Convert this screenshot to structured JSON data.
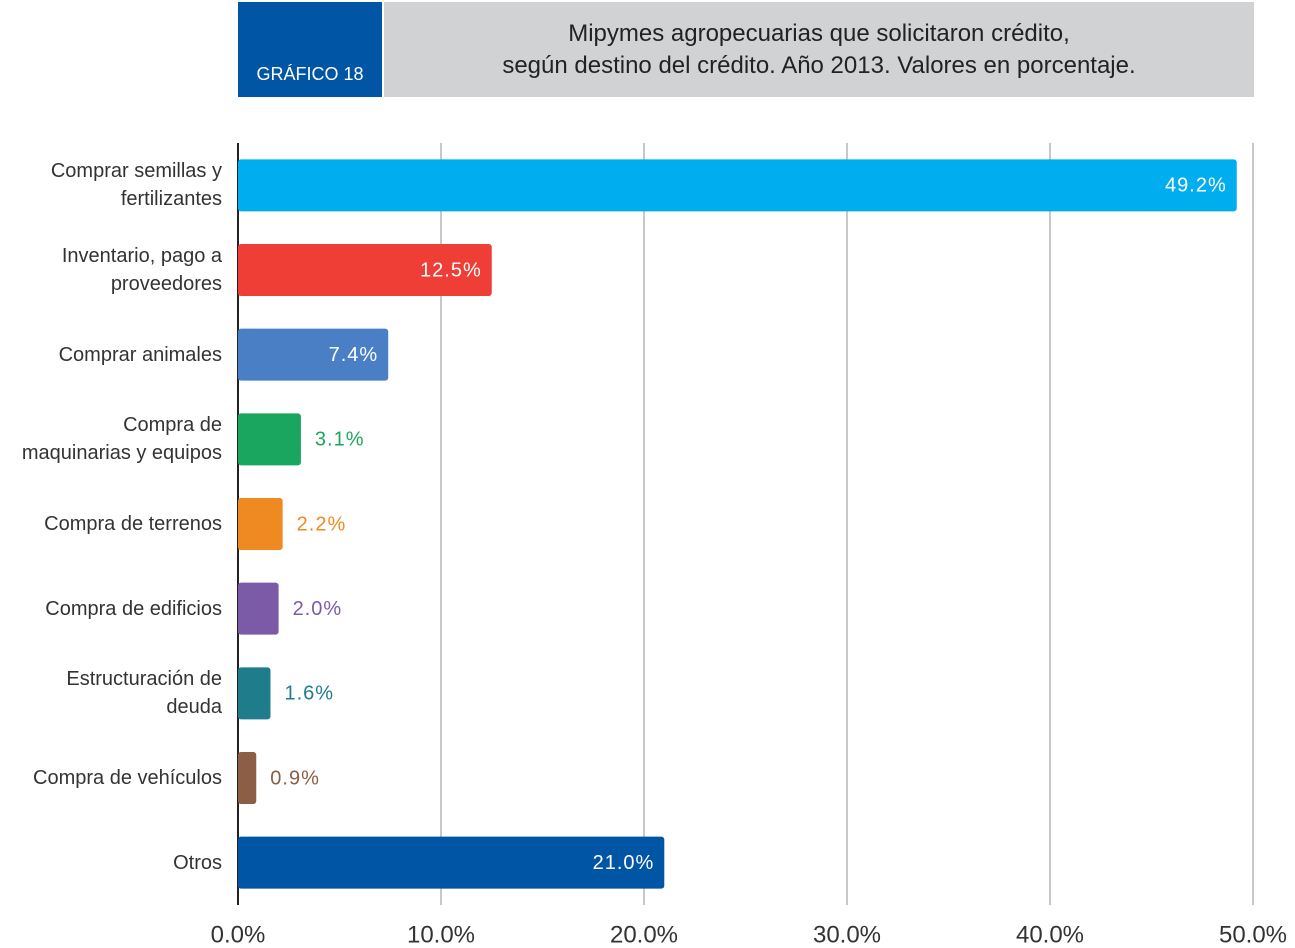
{
  "chart_data": {
    "type": "bar",
    "orientation": "horizontal",
    "badge": "GRÁFICO 18",
    "title": "Mipymes agropecuarias que solicitaron crédito,\nsegún destino del crédito. Año 2013. Valores en porcentaje.",
    "categories": [
      "Comprar semillas y\nfertilizantes",
      "Inventario, pago a\nproveedores",
      "Comprar animales",
      "Compra de\nmaquinarias y equipos",
      "Compra de terrenos",
      "Compra de edificios",
      "Estructuración de\ndeuda",
      "Compra de vehículos",
      "Otros"
    ],
    "values": [
      49.2,
      12.5,
      7.4,
      3.1,
      2.2,
      2.0,
      1.6,
      0.9,
      21.0
    ],
    "value_labels": [
      "49.2%",
      "12.5%",
      "7.4%",
      "3.1%",
      "2.2%",
      "2.0%",
      "1.6%",
      "0.9%",
      "21.0%"
    ],
    "colors": [
      "#00aeef",
      "#ef3e36",
      "#4a7fc6",
      "#1ba65f",
      "#ef8a22",
      "#7b5ba8",
      "#1f7c8a",
      "#8b5e45",
      "#0055a5"
    ],
    "xlim": [
      0,
      50
    ],
    "xticks": [
      {
        "value": 0,
        "label": "0.0%"
      },
      {
        "value": 10,
        "label": "10.0%"
      },
      {
        "value": 20,
        "label": "20.0%"
      },
      {
        "value": 30,
        "label": "30.0%"
      },
      {
        "value": 40,
        "label": "40.0%"
      },
      {
        "value": 50,
        "label": "50.0%"
      }
    ],
    "grid": true
  }
}
